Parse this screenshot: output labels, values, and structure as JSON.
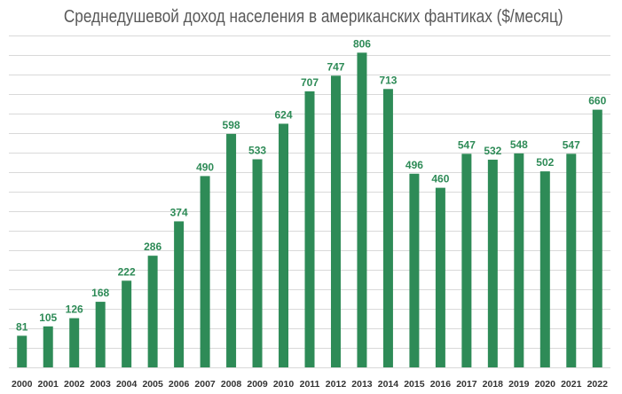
{
  "chart_data": {
    "type": "bar",
    "title": "Среднедушевой доход населения в американских фантиках ($/месяц)",
    "xlabel": "",
    "ylabel": "",
    "categories": [
      "2000",
      "2001",
      "2002",
      "2003",
      "2004",
      "2005",
      "2006",
      "2007",
      "2008",
      "2009",
      "2010",
      "2011",
      "2012",
      "2013",
      "2014",
      "2015",
      "2016",
      "2017",
      "2018",
      "2019",
      "2020",
      "2021",
      "2022"
    ],
    "values": [
      81,
      105,
      126,
      168,
      222,
      286,
      374,
      490,
      598,
      533,
      624,
      707,
      747,
      806,
      713,
      496,
      460,
      547,
      532,
      548,
      502,
      547,
      660
    ],
    "ylim": [
      0,
      850
    ],
    "grid": true,
    "legend": "none",
    "colors": {
      "bar": "#2e8b57",
      "label": "#2e8b57",
      "tick": "#333333",
      "title": "#595959",
      "grid": "#d9d9d9"
    }
  }
}
